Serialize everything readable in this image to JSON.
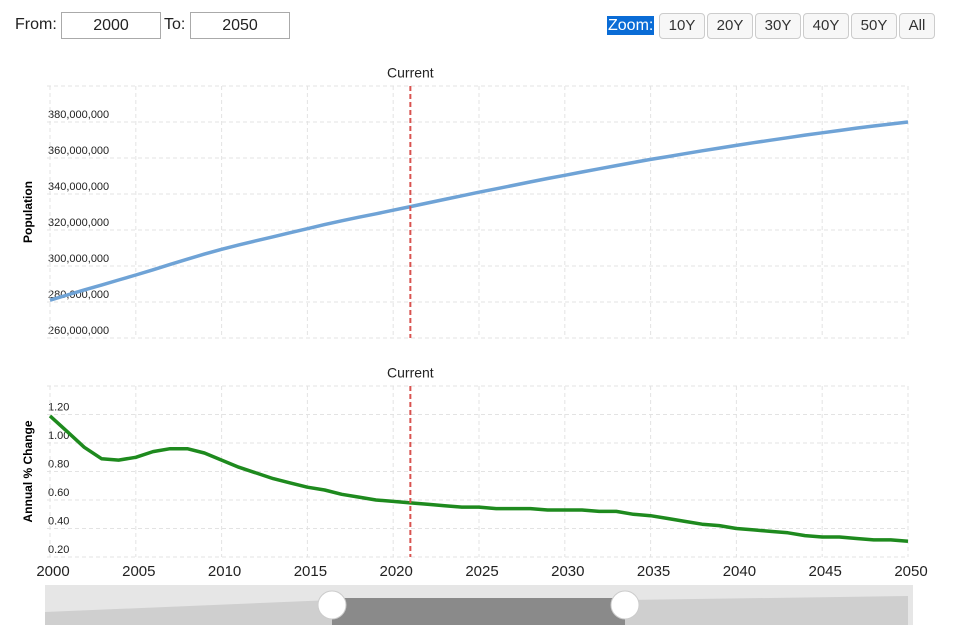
{
  "controls": {
    "from_label": "From:",
    "from": "2000",
    "to_label": "To:",
    "to": "2050",
    "zoom_label": "Zoom:",
    "zoom_buttons": [
      "10Y",
      "20Y",
      "30Y",
      "40Y",
      "50Y",
      "All"
    ]
  },
  "chart_data": [
    {
      "type": "line",
      "ylabel": "Population",
      "marker": {
        "x": 2021,
        "label": "Current",
        "color": "#d9534f"
      },
      "x": [
        2000,
        2001,
        2002,
        2003,
        2004,
        2005,
        2006,
        2007,
        2008,
        2009,
        2010,
        2011,
        2012,
        2013,
        2014,
        2015,
        2016,
        2017,
        2018,
        2019,
        2020,
        2021,
        2022,
        2023,
        2024,
        2025,
        2026,
        2027,
        2028,
        2029,
        2030,
        2031,
        2032,
        2033,
        2034,
        2035,
        2036,
        2037,
        2038,
        2039,
        2040,
        2041,
        2042,
        2043,
        2044,
        2045,
        2046,
        2047,
        2048,
        2049,
        2050
      ],
      "series": [
        {
          "color": "#6fa3d6",
          "values": [
            281000000,
            283900000,
            286700000,
            289400000,
            292200000,
            295000000,
            297900000,
            300900000,
            303800000,
            306600000,
            309300000,
            311700000,
            314000000,
            316200000,
            318500000,
            320700000,
            323000000,
            325100000,
            327100000,
            329000000,
            331000000,
            333000000,
            335000000,
            337000000,
            339000000,
            341000000,
            342900000,
            344800000,
            346700000,
            348600000,
            350400000,
            352200000,
            354000000,
            355800000,
            357500000,
            359200000,
            360800000,
            362400000,
            364000000,
            365500000,
            367000000,
            368500000,
            369900000,
            371300000,
            372700000,
            374000000,
            375300000,
            376600000,
            377800000,
            378900000,
            380000000
          ]
        }
      ],
      "xlim": [
        2000,
        2050
      ],
      "xticks": [
        2000,
        2005,
        2010,
        2015,
        2020,
        2025,
        2030,
        2035,
        2040,
        2045,
        2050
      ],
      "x_tick_labels": false,
      "ylim": [
        260000000,
        400000000
      ],
      "yticks": [
        {
          "value": 260000000,
          "label": "260,000,000"
        },
        {
          "value": 280000000,
          "label": "280,000,000"
        },
        {
          "value": 300000000,
          "label": "300,000,000"
        },
        {
          "value": 320000000,
          "label": "320,000,000"
        },
        {
          "value": 340000000,
          "label": "340,000,000"
        },
        {
          "value": 360000000,
          "label": "360,000,000"
        },
        {
          "value": 380000000,
          "label": "380,000,000"
        }
      ],
      "grid": true
    },
    {
      "type": "line",
      "ylabel": "Annual % Change",
      "marker": {
        "x": 2021,
        "label": "Current",
        "color": "#d9534f"
      },
      "x": [
        2000,
        2001,
        2002,
        2003,
        2004,
        2005,
        2006,
        2007,
        2008,
        2009,
        2010,
        2011,
        2012,
        2013,
        2014,
        2015,
        2016,
        2017,
        2018,
        2019,
        2020,
        2021,
        2022,
        2023,
        2024,
        2025,
        2026,
        2027,
        2028,
        2029,
        2030,
        2031,
        2032,
        2033,
        2034,
        2035,
        2036,
        2037,
        2038,
        2039,
        2040,
        2041,
        2042,
        2043,
        2044,
        2045,
        2046,
        2047,
        2048,
        2049,
        2050
      ],
      "series": [
        {
          "color": "#1e8a1e",
          "values": [
            1.19,
            1.08,
            0.97,
            0.89,
            0.88,
            0.9,
            0.94,
            0.96,
            0.96,
            0.93,
            0.88,
            0.83,
            0.79,
            0.75,
            0.72,
            0.69,
            0.67,
            0.64,
            0.62,
            0.6,
            0.59,
            0.58,
            0.57,
            0.56,
            0.55,
            0.55,
            0.54,
            0.54,
            0.54,
            0.53,
            0.53,
            0.53,
            0.52,
            0.52,
            0.5,
            0.49,
            0.47,
            0.45,
            0.43,
            0.42,
            0.4,
            0.39,
            0.38,
            0.37,
            0.35,
            0.34,
            0.34,
            0.33,
            0.32,
            0.32,
            0.31
          ]
        }
      ],
      "xlim": [
        2000,
        2050
      ],
      "xticks": [
        2000,
        2005,
        2010,
        2015,
        2020,
        2025,
        2030,
        2035,
        2040,
        2045,
        2050
      ],
      "x_tick_labels": true,
      "ylim": [
        0.2,
        1.4
      ],
      "yticks": [
        {
          "value": 0.2,
          "label": "0.20"
        },
        {
          "value": 0.4,
          "label": "0.40"
        },
        {
          "value": 0.6,
          "label": "0.60"
        },
        {
          "value": 0.8,
          "label": "0.80"
        },
        {
          "value": 1.0,
          "label": "1.00"
        },
        {
          "value": 1.2,
          "label": "1.20"
        }
      ],
      "grid": true
    }
  ]
}
